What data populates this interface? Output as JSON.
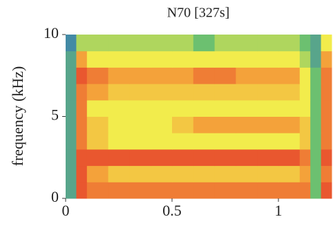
{
  "chart_data": {
    "type": "heatmap",
    "title": "N70 [327s]",
    "y_label": "frequency (kHz)",
    "x_edges": [
      0,
      0.05,
      0.1,
      0.2,
      0.3,
      0.4,
      0.5,
      0.6,
      0.7,
      0.8,
      0.9,
      1.0,
      1.1,
      1.15,
      1.2,
      1.25
    ],
    "y_edges": [
      0,
      1,
      2,
      3,
      4,
      5,
      6,
      7,
      8,
      9,
      10
    ],
    "z": [
      [
        2,
        9,
        8,
        8,
        8,
        8,
        8,
        8,
        8,
        8,
        8,
        8,
        8,
        3,
        9
      ],
      [
        2,
        9,
        7,
        6,
        6,
        6,
        6,
        6,
        6,
        6,
        6,
        6,
        7,
        3,
        8
      ],
      [
        2,
        9,
        9,
        9,
        9,
        9,
        9,
        9,
        9,
        9,
        9,
        9,
        8,
        3,
        9
      ],
      [
        2,
        8,
        6,
        5,
        5,
        5,
        5,
        5,
        5,
        5,
        5,
        5,
        6,
        3,
        8
      ],
      [
        2,
        8,
        6,
        5,
        5,
        5,
        6,
        7,
        7,
        7,
        7,
        7,
        6,
        3,
        8
      ],
      [
        2,
        8,
        5,
        5,
        5,
        5,
        5,
        5,
        5,
        5,
        5,
        5,
        5,
        3,
        8
      ],
      [
        2,
        8,
        7,
        6,
        6,
        6,
        6,
        6,
        6,
        6,
        6,
        6,
        5,
        3,
        8
      ],
      [
        2,
        9,
        8,
        7,
        7,
        7,
        7,
        8,
        8,
        7,
        7,
        7,
        5,
        3,
        8
      ],
      [
        2,
        7,
        5,
        5,
        5,
        5,
        5,
        5,
        5,
        5,
        5,
        5,
        4,
        2,
        7
      ],
      [
        1,
        4,
        4,
        4,
        4,
        4,
        4,
        3,
        4,
        4,
        4,
        4,
        3,
        2,
        5
      ]
    ],
    "colorscale": [
      [
        0,
        "#2f6fc0"
      ],
      [
        3,
        "#6cc070"
      ],
      [
        5,
        "#f2ec4c"
      ],
      [
        7,
        "#f4a23a"
      ],
      [
        10,
        "#e4322a"
      ]
    ],
    "xlim": [
      0,
      1.25
    ],
    "ylim": [
      0,
      10
    ],
    "xticks": [
      0,
      0.5,
      1
    ],
    "yticks": [
      0,
      5,
      10
    ]
  }
}
